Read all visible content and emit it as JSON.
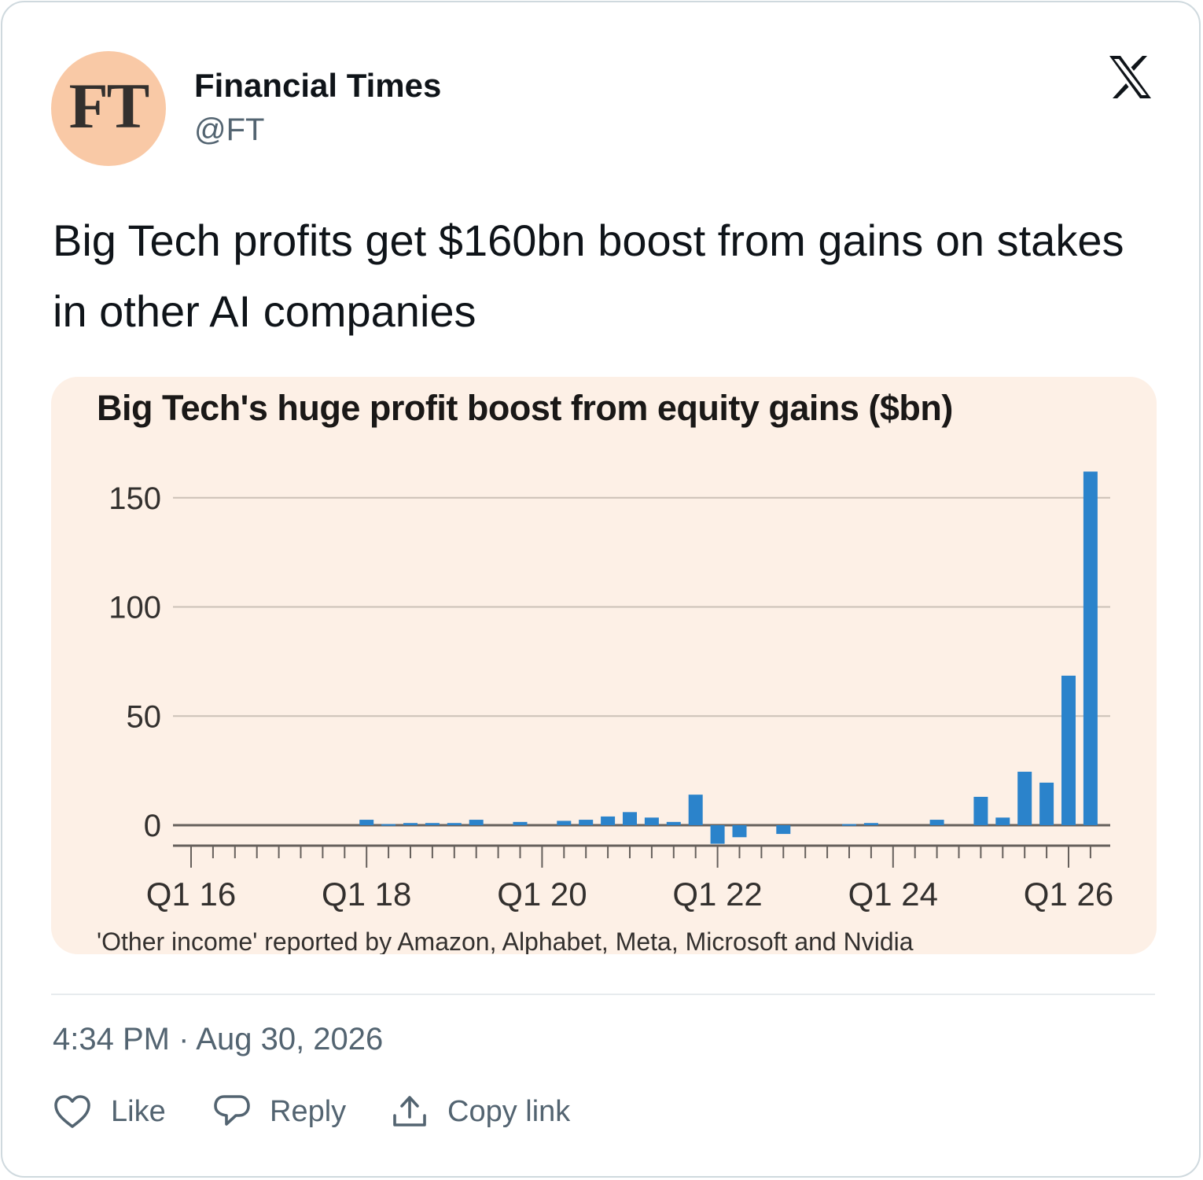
{
  "tweet": {
    "avatar_text": "FT",
    "author_name": "Financial Times",
    "author_handle": "@FT",
    "text": "Big Tech profits get $160bn boost from gains on stakes in other AI companies",
    "timestamp": "4:34 PM · Aug 30, 2026",
    "actions": {
      "like": "Like",
      "reply": "Reply",
      "copy_link": "Copy link"
    }
  },
  "colors": {
    "avatar_bg": "#f9c9a6",
    "chart_bg": "#fdf0e6",
    "bar": "#2b83cb",
    "muted_text": "#536471"
  },
  "icons": [
    "x-logo-icon",
    "heart-icon",
    "speech-bubble-icon",
    "share-upload-icon"
  ],
  "chart_data": {
    "type": "bar",
    "title": "Big Tech's huge profit boost from equity gains ($bn)",
    "source": "'Other income' reported by Amazon, Alphabet, Meta, Microsoft and Nvidia",
    "ylim": [
      -10,
      160
    ],
    "yticks": [
      0,
      50,
      100,
      150
    ],
    "grid": true,
    "xtick_labels": [
      "Q1 16",
      "Q1 18",
      "Q1 20",
      "Q1 22",
      "Q1 24",
      "Q1 26"
    ],
    "categories": [
      "Q1 16",
      "Q2 16",
      "Q3 16",
      "Q4 16",
      "Q1 17",
      "Q2 17",
      "Q3 17",
      "Q4 17",
      "Q1 18",
      "Q2 18",
      "Q3 18",
      "Q4 18",
      "Q1 19",
      "Q2 19",
      "Q3 19",
      "Q4 19",
      "Q1 20",
      "Q2 20",
      "Q3 20",
      "Q4 20",
      "Q1 21",
      "Q2 21",
      "Q3 21",
      "Q4 21",
      "Q1 22",
      "Q2 22",
      "Q3 22",
      "Q4 22",
      "Q1 23",
      "Q2 23",
      "Q3 23",
      "Q4 23",
      "Q1 24",
      "Q2 24",
      "Q3 24",
      "Q4 24",
      "Q1 25",
      "Q2 25",
      "Q3 25",
      "Q4 25",
      "Q1 26",
      "Q2 26"
    ],
    "values": [
      0,
      0,
      0,
      0,
      0,
      0,
      0,
      0,
      2.5,
      0.5,
      1,
      1,
      1,
      2.5,
      0,
      1.5,
      0,
      2,
      2.5,
      4,
      6,
      3.5,
      1.5,
      14,
      -8.5,
      -5.5,
      0,
      -4,
      0,
      0,
      0.5,
      1,
      0,
      0,
      2.5,
      0,
      13,
      3.5,
      24.5,
      19.5,
      68.5,
      162
    ]
  }
}
